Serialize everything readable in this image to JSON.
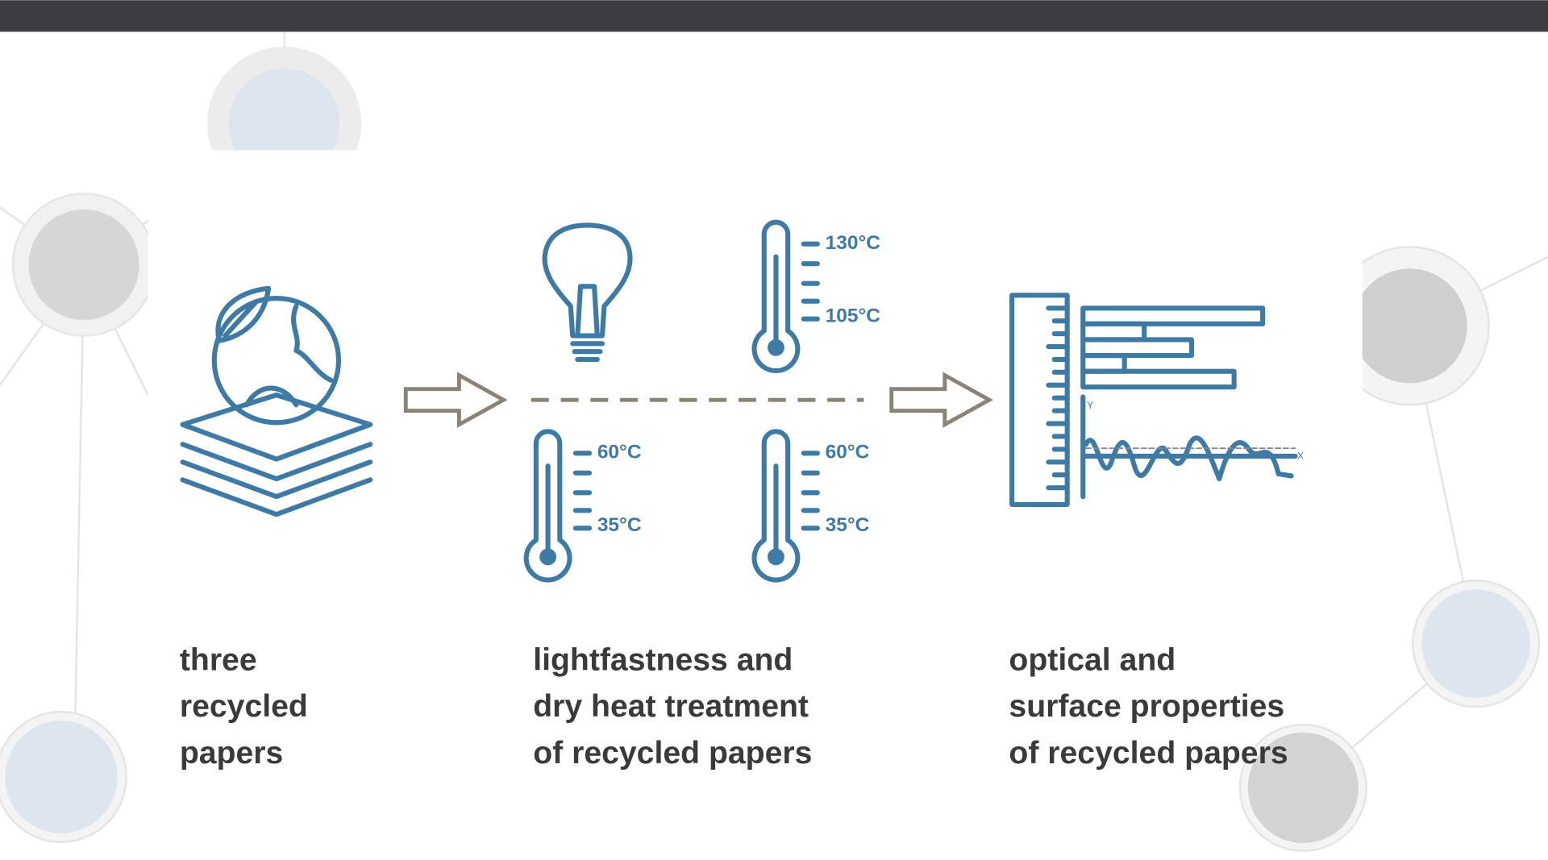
{
  "steps": [
    {
      "label": [
        "three",
        "recycled",
        "papers"
      ]
    },
    {
      "label": [
        "lightfastness and",
        "dry heat treatment",
        "of recycled papers"
      ],
      "thermometers": [
        {
          "high": "60°C",
          "low": "35°C"
        },
        {
          "high": "60°C",
          "low": "35°C"
        },
        {
          "high": "130°C",
          "low": "105°C"
        }
      ]
    },
    {
      "label": [
        "optical and",
        "surface properties",
        "of recycled papers"
      ],
      "axis_labels": {
        "y": "Y",
        "x": "X"
      }
    }
  ]
}
